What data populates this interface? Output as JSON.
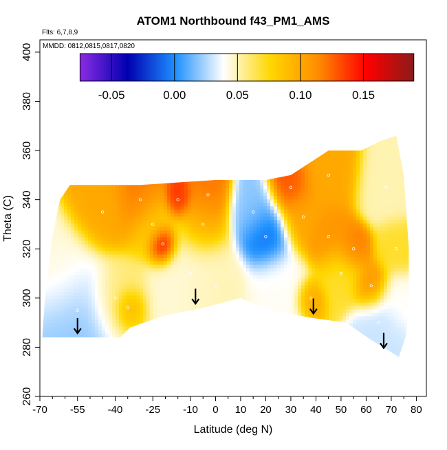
{
  "chart_data": {
    "type": "heatmap",
    "title": "ATOM1 Northbound f43_PM1_AMS",
    "notes": [
      "Flts: 6,7,8,9",
      "MMDD: 0812,0815,0817,0820"
    ],
    "xlabel": "Latitude (deg N)",
    "ylabel": "Theta (C)",
    "xlim": [
      -70,
      84
    ],
    "ylim": [
      260,
      405
    ],
    "x_major_ticks": [
      -70,
      -55,
      -40,
      -25,
      -10,
      0,
      10,
      20,
      30,
      40,
      50,
      60,
      70,
      80
    ],
    "x_minor_ticks": [
      -65,
      -60,
      -50,
      -45,
      -35,
      -30,
      -20,
      -15,
      -5,
      5,
      15,
      25,
      35,
      45,
      55,
      65,
      75
    ],
    "y_ticks": [
      260,
      280,
      300,
      320,
      340,
      360,
      380,
      400
    ],
    "colorbar": {
      "range": [
        -0.075,
        0.19
      ],
      "ticks": [
        -0.05,
        0.0,
        0.05,
        0.1,
        0.15
      ],
      "tick_labels": [
        "-0.05",
        "0.00",
        "0.05",
        "0.10",
        "0.15"
      ],
      "colors": [
        "#8a2be2",
        "#0000b0",
        "#1e90ff",
        "#ffffff",
        "#ffd700",
        "#ff8c00",
        "#ff0000",
        "#8b1a1a"
      ]
    },
    "arrows_lat": [
      -55,
      -8,
      39,
      67
    ],
    "boundary_bottom": [
      [
        -69,
        284
      ],
      [
        -38,
        284
      ],
      [
        -34,
        288
      ],
      [
        -20,
        293
      ],
      [
        -5,
        296
      ],
      [
        10,
        300
      ],
      [
        22,
        295
      ],
      [
        38,
        292
      ],
      [
        52,
        290
      ],
      [
        62,
        283
      ],
      [
        70,
        278
      ],
      [
        73,
        276
      ]
    ],
    "boundary_top": [
      [
        -68,
        300
      ],
      [
        -65,
        325
      ],
      [
        -62,
        340
      ],
      [
        -58,
        346
      ],
      [
        -30,
        346
      ],
      [
        0,
        348
      ],
      [
        20,
        348
      ],
      [
        30,
        350
      ],
      [
        45,
        360
      ],
      [
        58,
        360
      ],
      [
        66,
        364
      ],
      [
        72,
        366
      ],
      [
        75,
        350
      ],
      [
        77,
        320
      ],
      [
        77,
        300
      ],
      [
        76,
        285
      ],
      [
        73,
        276
      ]
    ],
    "field": [
      {
        "lat": -55,
        "theta": 295,
        "value": 0.02,
        "r": 11
      },
      {
        "lat": -60,
        "theta": 310,
        "value": 0.045,
        "r": 10
      },
      {
        "lat": -40,
        "theta": 300,
        "value": 0.06,
        "r": 8
      },
      {
        "lat": -35,
        "theta": 296,
        "value": 0.1,
        "r": 4
      },
      {
        "lat": -45,
        "theta": 335,
        "value": 0.1,
        "r": 8
      },
      {
        "lat": -30,
        "theta": 340,
        "value": 0.12,
        "r": 7
      },
      {
        "lat": -21,
        "theta": 322,
        "value": 0.17,
        "r": 4
      },
      {
        "lat": -25,
        "theta": 330,
        "value": 0.08,
        "r": 7
      },
      {
        "lat": -15,
        "theta": 340,
        "value": 0.14,
        "r": 4
      },
      {
        "lat": -5,
        "theta": 330,
        "value": 0.1,
        "r": 7
      },
      {
        "lat": -3,
        "theta": 342,
        "value": 0.12,
        "r": 6
      },
      {
        "lat": -10,
        "theta": 310,
        "value": 0.045,
        "r": 11
      },
      {
        "lat": 0,
        "theta": 305,
        "value": 0.05,
        "r": 9
      },
      {
        "lat": 20,
        "theta": 325,
        "value": -0.01,
        "r": 7
      },
      {
        "lat": 15,
        "theta": 335,
        "value": 0.02,
        "r": 7
      },
      {
        "lat": 25,
        "theta": 305,
        "value": 0.04,
        "r": 9
      },
      {
        "lat": 30,
        "theta": 345,
        "value": 0.13,
        "r": 6
      },
      {
        "lat": 35,
        "theta": 333,
        "value": 0.1,
        "r": 7
      },
      {
        "lat": 45,
        "theta": 350,
        "value": 0.1,
        "r": 8
      },
      {
        "lat": 45,
        "theta": 325,
        "value": 0.11,
        "r": 7
      },
      {
        "lat": 38,
        "theta": 300,
        "value": 0.1,
        "r": 4
      },
      {
        "lat": 50,
        "theta": 310,
        "value": 0.07,
        "r": 7
      },
      {
        "lat": 55,
        "theta": 320,
        "value": 0.12,
        "r": 5
      },
      {
        "lat": 62,
        "theta": 305,
        "value": 0.11,
        "r": 5
      },
      {
        "lat": 65,
        "theta": 290,
        "value": 0.03,
        "r": 7
      },
      {
        "lat": 68,
        "theta": 345,
        "value": 0.05,
        "r": 8
      },
      {
        "lat": 72,
        "theta": 320,
        "value": 0.07,
        "r": 6
      },
      {
        "lat": 73,
        "theta": 300,
        "value": 0.04,
        "r": 6
      }
    ]
  }
}
